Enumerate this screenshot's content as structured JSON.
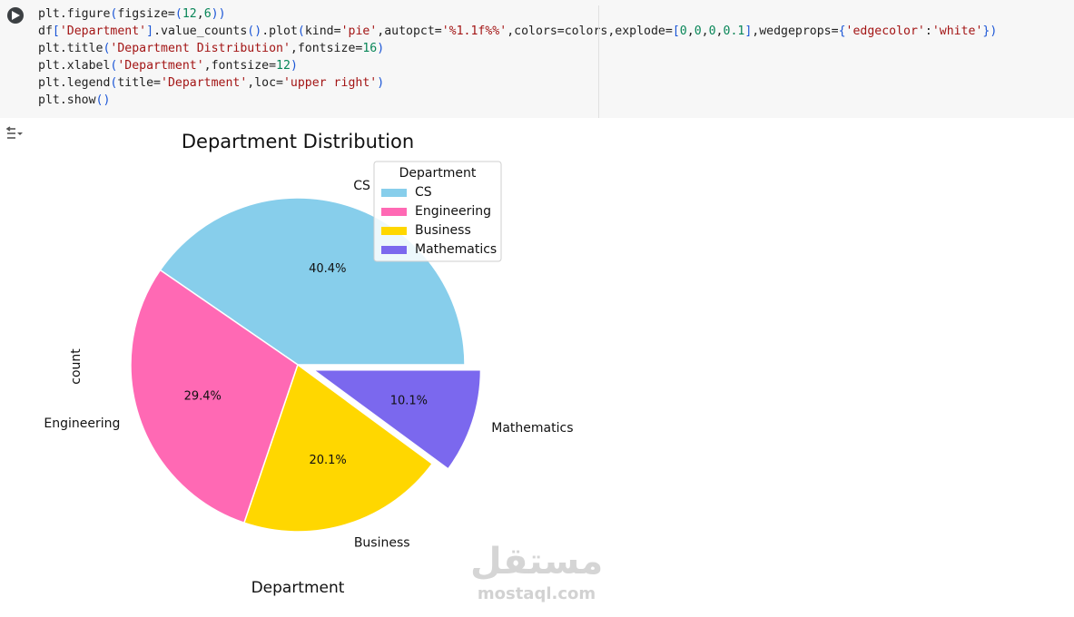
{
  "code_cell": {
    "lines": [
      "plt.figure(figsize=(12,6))",
      "df['Department'].value_counts().plot(kind='pie',autopct='%1.1f%%',colors=colors,explode=[0,0,0,0.1],wedgeprops={'edgecolor':'white'})",
      "plt.title('Department Distribution',fontsize=16)",
      "plt.xlabel('Department',fontsize=12)",
      "plt.legend(title='Department',loc='upper right')",
      "plt.show()"
    ]
  },
  "colors": {
    "cell_bg": "#f7f7f7",
    "run_button": "#3c4043",
    "code_string": "#a31515",
    "code_number": "#098658",
    "code_paren": "#1a55d6"
  },
  "icons": {
    "run": "play-icon",
    "output_toggle": "output-toggle-icon"
  },
  "chart_data": {
    "type": "pie",
    "title": "Department Distribution",
    "xlabel": "Department",
    "ylabel": "count",
    "categories": [
      "CS",
      "Engineering",
      "Business",
      "Mathematics"
    ],
    "values": [
      40.4,
      29.4,
      20.1,
      10.1
    ],
    "value_labels": [
      "40.4%",
      "29.4%",
      "20.1%",
      "10.1%"
    ],
    "colors": [
      "#87ceeb",
      "#ff69b4",
      "#ffd700",
      "#7b68ee"
    ],
    "explode": [
      0,
      0,
      0,
      0.1
    ],
    "start_angle": 0,
    "edgecolor": "#ffffff",
    "legend": {
      "title": "Department",
      "loc": "upper right",
      "entries": [
        "CS",
        "Engineering",
        "Business",
        "Mathematics"
      ]
    }
  },
  "watermark": {
    "arabic": "مستقل",
    "latin": "mostaql.com"
  }
}
